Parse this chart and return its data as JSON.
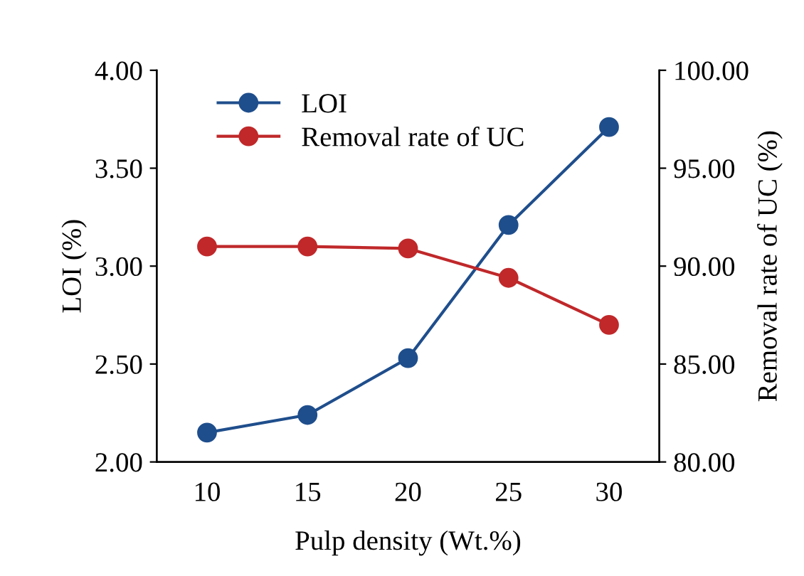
{
  "chart_data": {
    "type": "line",
    "xlabel": "Pulp density (Wt.%)",
    "ylabel": "LOI (%)",
    "y2label": "Removal rate of UC (%)",
    "categories": [
      "10",
      "15",
      "20",
      "25",
      "30"
    ],
    "series": [
      {
        "name": "LOI",
        "color": "#1f4e8c",
        "values": [
          2.15,
          2.24,
          2.53,
          3.21,
          3.71
        ]
      },
      {
        "name": "Removal rate of UC",
        "color": "#c0282a",
        "axis": "y2",
        "values": [
          91.0,
          91.0,
          90.9,
          89.4,
          87.0
        ]
      }
    ],
    "ylim": [
      2.0,
      4.0
    ],
    "yticks": [
      {
        "value": 2.0,
        "label": "2.00"
      },
      {
        "value": 2.5,
        "label": "2.50"
      },
      {
        "value": 3.0,
        "label": "3.00"
      },
      {
        "value": 3.5,
        "label": "3.50"
      },
      {
        "value": 4.0,
        "label": "4.00"
      }
    ],
    "y2lim": [
      80,
      100
    ],
    "y2ticks": [
      {
        "value": 80,
        "label": "80.00"
      },
      {
        "value": 85,
        "label": "85.00"
      },
      {
        "value": 90,
        "label": "90.00"
      },
      {
        "value": 95,
        "label": "95.00"
      },
      {
        "value": 100,
        "label": "100.00"
      }
    ],
    "marker": "circle",
    "line_style": "solid",
    "grid": false,
    "legend": "top left"
  }
}
